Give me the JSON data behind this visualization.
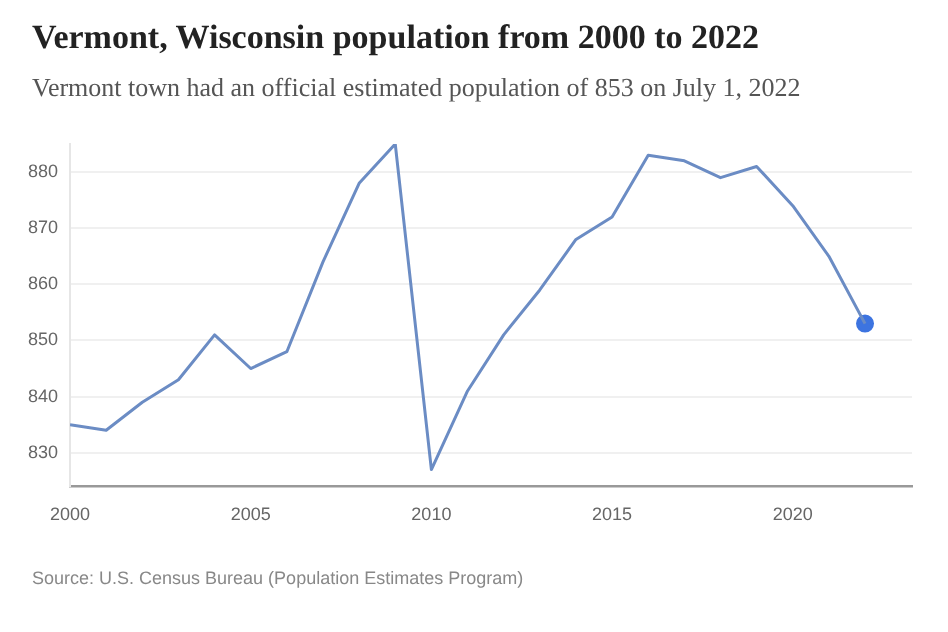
{
  "chart_data": {
    "type": "line",
    "title": "Vermont, Wisconsin population from 2000 to 2022",
    "subtitle": "Vermont town had an official estimated population of 853 on July 1, 2022",
    "x": [
      2000,
      2001,
      2002,
      2003,
      2004,
      2005,
      2006,
      2007,
      2008,
      2009,
      2010,
      2011,
      2012,
      2013,
      2014,
      2015,
      2016,
      2017,
      2018,
      2019,
      2020,
      2021,
      2022
    ],
    "series": [
      {
        "color": "#6b8cc4",
        "values": [
          835,
          834,
          839,
          843,
          851,
          845,
          848,
          864,
          878,
          885,
          827,
          841,
          851,
          859,
          868,
          872,
          883,
          882,
          879,
          881,
          874,
          865,
          853
        ]
      },
      {
        "type": "scatter",
        "color": "#3d74e0",
        "marker": "circle",
        "x": [
          2022
        ],
        "values": [
          853
        ]
      }
    ],
    "xlim": [
      2000,
      2023.3
    ],
    "xticks": [
      2000,
      2005,
      2010,
      2015,
      2020
    ],
    "ylim": [
      824,
      885
    ],
    "yticks": [
      830,
      840,
      850,
      860,
      870,
      880
    ],
    "grid": "y",
    "legend": false,
    "annotations": [
      "Source: U.S. Census Bureau (Population Estimates Program)"
    ]
  }
}
